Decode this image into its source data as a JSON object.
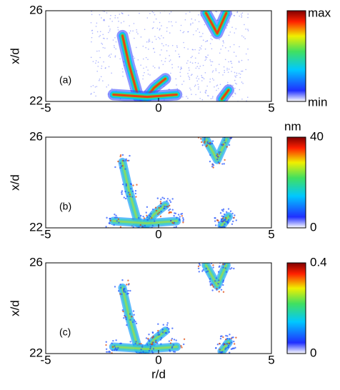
{
  "chart_data": [
    {
      "type": "image",
      "panel_label": "(a)",
      "ylabel": "x/d",
      "xlim": [
        -5,
        5
      ],
      "xticks": [
        -5,
        0,
        5
      ],
      "ylim": [
        22,
        26
      ],
      "yticks": [
        22,
        26
      ],
      "colorbar_labels": [
        "max",
        "min"
      ]
    },
    {
      "type": "image",
      "panel_label": "(b)",
      "ylabel": "x/d",
      "xlim": [
        -5,
        5
      ],
      "xticks": [
        -5,
        0,
        5
      ],
      "ylim": [
        22,
        26
      ],
      "yticks": [
        22,
        26
      ],
      "colorbar_unit": "nm",
      "clim": [
        0,
        40
      ],
      "cticks": [
        0,
        40
      ]
    },
    {
      "type": "image",
      "panel_label": "(c)",
      "ylabel": "x/d",
      "xlabel": "r/d",
      "xlim": [
        -5,
        5
      ],
      "xticks": [
        -5,
        0,
        5
      ],
      "ylim": [
        22,
        26
      ],
      "yticks": [
        22,
        26
      ],
      "clim": [
        0,
        0.4
      ],
      "cticks": [
        0,
        0.4
      ]
    }
  ]
}
